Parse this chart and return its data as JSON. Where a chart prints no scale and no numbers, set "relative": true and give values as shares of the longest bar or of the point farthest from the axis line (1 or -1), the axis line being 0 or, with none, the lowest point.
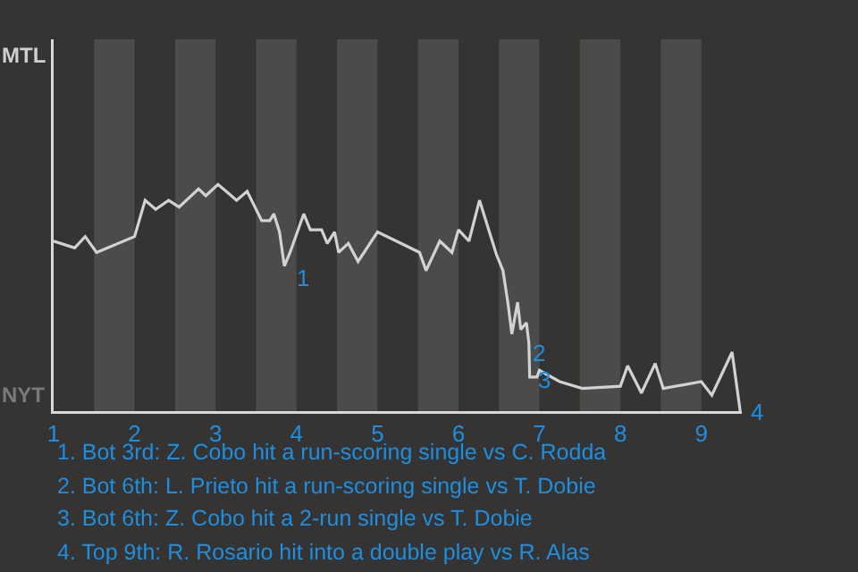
{
  "chart_data": {
    "type": "line",
    "relative": true,
    "x": [
      1.0,
      1.26,
      1.39,
      1.53,
      2.0,
      2.13,
      2.26,
      2.42,
      2.55,
      2.79,
      2.88,
      3.03,
      3.26,
      3.39,
      3.57,
      3.67,
      3.72,
      3.79,
      3.85,
      3.92,
      4.09,
      4.17,
      4.31,
      4.38,
      4.47,
      4.52,
      4.64,
      4.76,
      5.0,
      5.29,
      5.52,
      5.6,
      5.77,
      5.92,
      6.0,
      6.13,
      6.26,
      6.47,
      6.55,
      6.61,
      6.66,
      6.73,
      6.77,
      6.84,
      6.87,
      6.88,
      6.97,
      7.0,
      7.25,
      7.53,
      8.0,
      8.09,
      8.26,
      8.43,
      8.53,
      9.0,
      9.13,
      9.38,
      9.48
    ],
    "series": [
      {
        "color": "#d2d2d2",
        "values": [
          0.75,
          0.72,
          0.77,
          0.7,
          0.77,
          0.93,
          0.89,
          0.93,
          0.9,
          0.98,
          0.95,
          1,
          0.93,
          0.97,
          0.84,
          0.84,
          0.87,
          0.79,
          0.64,
          0.7,
          0.87,
          0.8,
          0.8,
          0.74,
          0.79,
          0.7,
          0.74,
          0.66,
          0.79,
          0.74,
          0.7,
          0.62,
          0.75,
          0.7,
          0.8,
          0.75,
          0.93,
          0.69,
          0.62,
          0.48,
          0.34,
          0.48,
          0.36,
          0.39,
          0.3,
          0.15,
          0.15,
          0.18,
          0.13,
          0.1,
          0.11,
          0.2,
          0.08,
          0.21,
          0.1,
          0.13,
          0.07,
          0.26,
          0
        ]
      }
    ],
    "xlim": [
      1,
      9.5
    ],
    "xticks": [
      1,
      2,
      3,
      4,
      5,
      6,
      7,
      8,
      9
    ],
    "marker": "none",
    "line_style": "solid",
    "bands": [
      {
        "axis": "x",
        "from": 1.5,
        "to": 2,
        "color": "#4c4b49"
      },
      {
        "axis": "x",
        "from": 2.5,
        "to": 3,
        "color": "#4c4b49"
      },
      {
        "axis": "x",
        "from": 3.5,
        "to": 4,
        "color": "#4c4b49"
      },
      {
        "axis": "x",
        "from": 4.5,
        "to": 5,
        "color": "#4c4b49"
      },
      {
        "axis": "x",
        "from": 5.5,
        "to": 6,
        "color": "#4c4b49"
      },
      {
        "axis": "x",
        "from": 6.5,
        "to": 7,
        "color": "#4c4b49"
      },
      {
        "axis": "x",
        "from": 7.5,
        "to": 8,
        "color": "#4c4b49"
      },
      {
        "axis": "x",
        "from": 8.5,
        "to": 9,
        "color": "#4c4b49"
      }
    ],
    "annotations": [
      "MTL",
      "NYT",
      {
        "text": "1",
        "x": 3.86,
        "y": 0.66
      },
      {
        "text": "2",
        "x": 6.78,
        "y": 0.33
      },
      {
        "text": "3",
        "x": 6.85,
        "y": 0.21
      },
      {
        "text": "4",
        "x": 9.48,
        "y": 0.07
      },
      "1. Bot 3rd: Z. Cobo hit a run-scoring single vs C. Rodda",
      "2. Bot 6th: L. Prieto hit a run-scoring single vs T. Dobie",
      "3. Bot 6th: Z. Cobo hit a 2-run single vs T. Dobie",
      "4. Top 9th: R. Rosario hit into a double play vs R. Alas"
    ]
  }
}
